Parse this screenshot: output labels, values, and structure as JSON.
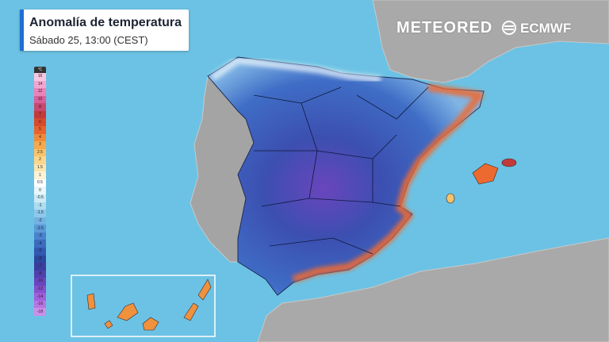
{
  "header": {
    "title": "Anomalía de temperatura",
    "subtitle": "Sábado 25, 13:00 (CEST)"
  },
  "brand": {
    "name": "METEORED",
    "partner": "ECMWF"
  },
  "legend": {
    "unit": "°C",
    "stops": [
      {
        "label": "16",
        "color": "#f7c6e0"
      },
      {
        "label": "14",
        "color": "#f2a6cf"
      },
      {
        "label": "12",
        "color": "#e983b8"
      },
      {
        "label": "10",
        "color": "#d9609a"
      },
      {
        "label": "8",
        "color": "#c8486f"
      },
      {
        "label": "7",
        "color": "#c23a3a"
      },
      {
        "label": "6",
        "color": "#d74a2c"
      },
      {
        "label": "5",
        "color": "#e8632e"
      },
      {
        "label": "4",
        "color": "#f08a3a"
      },
      {
        "label": "3",
        "color": "#f5a94c"
      },
      {
        "label": "2.5",
        "color": "#f8c26a"
      },
      {
        "label": "2",
        "color": "#fad68c"
      },
      {
        "label": "1.5",
        "color": "#fbe6b1"
      },
      {
        "label": "1",
        "color": "#fdf2d6"
      },
      {
        "label": "0.5",
        "color": "#ffffff"
      },
      {
        "label": "0",
        "color": "#e9f6fb"
      },
      {
        "label": "-0.5",
        "color": "#cdeaf6"
      },
      {
        "label": "-1",
        "color": "#aedcf0"
      },
      {
        "label": "-1.5",
        "color": "#8ec8ea"
      },
      {
        "label": "-2",
        "color": "#72b1e2"
      },
      {
        "label": "-2.5",
        "color": "#5b99d8"
      },
      {
        "label": "-3",
        "color": "#4a82cd"
      },
      {
        "label": "-4",
        "color": "#3c6cc0"
      },
      {
        "label": "-5",
        "color": "#3258b0"
      },
      {
        "label": "-6",
        "color": "#2c479f"
      },
      {
        "label": "-7",
        "color": "#3a3d9e"
      },
      {
        "label": "-8",
        "color": "#5140ad"
      },
      {
        "label": "-10",
        "color": "#6a45bd"
      },
      {
        "label": "-12",
        "color": "#8550cc"
      },
      {
        "label": "-14",
        "color": "#a05fda"
      },
      {
        "label": "-16",
        "color": "#b874e3"
      },
      {
        "label": "-18",
        "color": "#cc8eea"
      }
    ]
  }
}
